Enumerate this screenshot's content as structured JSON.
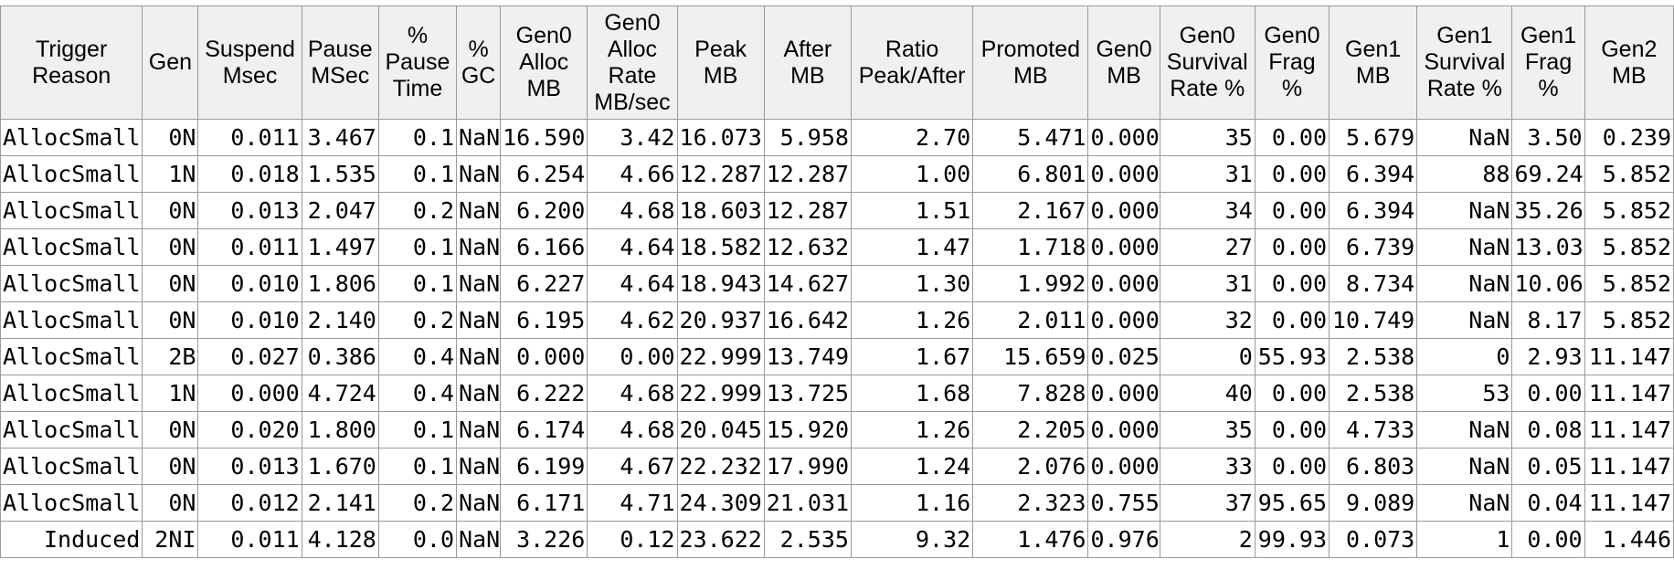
{
  "columns": [
    [
      "Trigger",
      "Reason"
    ],
    [
      "Gen"
    ],
    [
      "Suspend",
      "Msec"
    ],
    [
      "Pause",
      "MSec"
    ],
    [
      "%",
      "Pause",
      "Time"
    ],
    [
      "%",
      "GC"
    ],
    [
      "Gen0",
      "Alloc",
      "MB"
    ],
    [
      "Gen0",
      "Alloc",
      "Rate",
      "MB/sec"
    ],
    [
      "Peak",
      "MB"
    ],
    [
      "After",
      "MB"
    ],
    [
      "Ratio",
      "Peak/After"
    ],
    [
      "Promoted",
      "MB"
    ],
    [
      "Gen0",
      "MB"
    ],
    [
      "Gen0",
      "Survival",
      "Rate %"
    ],
    [
      "Gen0",
      "Frag",
      "%"
    ],
    [
      "Gen1",
      "MB"
    ],
    [
      "Gen1",
      "Survival",
      "Rate %"
    ],
    [
      "Gen1",
      "Frag",
      "%"
    ],
    [
      "Gen2",
      "MB"
    ]
  ],
  "rows": [
    [
      "AllocSmall",
      "0N",
      "0.011",
      "3.467",
      "0.1",
      "NaN",
      "16.590",
      "3.42",
      "16.073",
      "5.958",
      "2.70",
      "5.471",
      "0.000",
      "35",
      "0.00",
      "5.679",
      "NaN",
      "3.50",
      "0.239"
    ],
    [
      "AllocSmall",
      "1N",
      "0.018",
      "1.535",
      "0.1",
      "NaN",
      "6.254",
      "4.66",
      "12.287",
      "12.287",
      "1.00",
      "6.801",
      "0.000",
      "31",
      "0.00",
      "6.394",
      "88",
      "69.24",
      "5.852"
    ],
    [
      "AllocSmall",
      "0N",
      "0.013",
      "2.047",
      "0.2",
      "NaN",
      "6.200",
      "4.68",
      "18.603",
      "12.287",
      "1.51",
      "2.167",
      "0.000",
      "34",
      "0.00",
      "6.394",
      "NaN",
      "35.26",
      "5.852"
    ],
    [
      "AllocSmall",
      "0N",
      "0.011",
      "1.497",
      "0.1",
      "NaN",
      "6.166",
      "4.64",
      "18.582",
      "12.632",
      "1.47",
      "1.718",
      "0.000",
      "27",
      "0.00",
      "6.739",
      "NaN",
      "13.03",
      "5.852"
    ],
    [
      "AllocSmall",
      "0N",
      "0.010",
      "1.806",
      "0.1",
      "NaN",
      "6.227",
      "4.64",
      "18.943",
      "14.627",
      "1.30",
      "1.992",
      "0.000",
      "31",
      "0.00",
      "8.734",
      "NaN",
      "10.06",
      "5.852"
    ],
    [
      "AllocSmall",
      "0N",
      "0.010",
      "2.140",
      "0.2",
      "NaN",
      "6.195",
      "4.62",
      "20.937",
      "16.642",
      "1.26",
      "2.011",
      "0.000",
      "32",
      "0.00",
      "10.749",
      "NaN",
      "8.17",
      "5.852"
    ],
    [
      "AllocSmall",
      "2B",
      "0.027",
      "0.386",
      "0.4",
      "NaN",
      "0.000",
      "0.00",
      "22.999",
      "13.749",
      "1.67",
      "15.659",
      "0.025",
      "0",
      "55.93",
      "2.538",
      "0",
      "2.93",
      "11.147"
    ],
    [
      "AllocSmall",
      "1N",
      "0.000",
      "4.724",
      "0.4",
      "NaN",
      "6.222",
      "4.68",
      "22.999",
      "13.725",
      "1.68",
      "7.828",
      "0.000",
      "40",
      "0.00",
      "2.538",
      "53",
      "0.00",
      "11.147"
    ],
    [
      "AllocSmall",
      "0N",
      "0.020",
      "1.800",
      "0.1",
      "NaN",
      "6.174",
      "4.68",
      "20.045",
      "15.920",
      "1.26",
      "2.205",
      "0.000",
      "35",
      "0.00",
      "4.733",
      "NaN",
      "0.08",
      "11.147"
    ],
    [
      "AllocSmall",
      "0N",
      "0.013",
      "1.670",
      "0.1",
      "NaN",
      "6.199",
      "4.67",
      "22.232",
      "17.990",
      "1.24",
      "2.076",
      "0.000",
      "33",
      "0.00",
      "6.803",
      "NaN",
      "0.05",
      "11.147"
    ],
    [
      "AllocSmall",
      "0N",
      "0.012",
      "2.141",
      "0.2",
      "NaN",
      "6.171",
      "4.71",
      "24.309",
      "21.031",
      "1.16",
      "2.323",
      "0.755",
      "37",
      "95.65",
      "9.089",
      "NaN",
      "0.04",
      "11.147"
    ],
    [
      "Induced",
      "2NI",
      "0.011",
      "4.128",
      "0.0",
      "NaN",
      "3.226",
      "0.12",
      "23.622",
      "2.535",
      "9.32",
      "1.476",
      "0.976",
      "2",
      "99.93",
      "0.073",
      "1",
      "0.00",
      "1.446"
    ]
  ]
}
